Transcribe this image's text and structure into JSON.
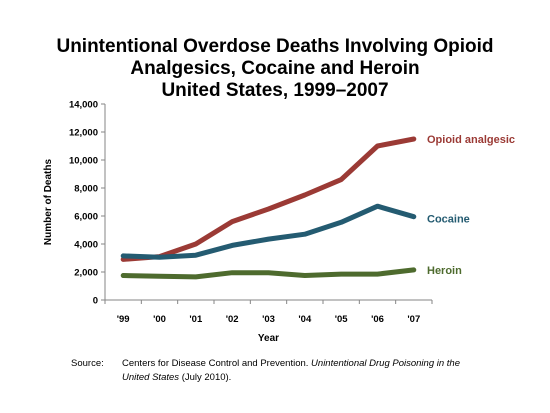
{
  "title": {
    "line1": "Unintentional Overdose Deaths Involving Opioid",
    "line2": "Analgesics, Cocaine and Heroin",
    "line3": "United States, 1999–2007"
  },
  "source": {
    "label": "Source:",
    "text_a": "Centers for Disease Control and Prevention.",
    "text_b": "Unintentional Drug Poisoning in the",
    "text_c": "United States",
    "text_d": "(July 2010)."
  },
  "chart_data": {
    "type": "line",
    "title": "Unintentional Overdose Deaths Involving Opioid Analgesics, Cocaine and Heroin United States, 1999–2007",
    "xlabel": "Year",
    "ylabel": "Number of Deaths",
    "x": [
      "'99",
      "'00",
      "'01",
      "'02",
      "'03",
      "'04",
      "'05",
      "'06",
      "'07"
    ],
    "ylim": [
      0,
      14000
    ],
    "yticks": [
      0,
      2000,
      4000,
      6000,
      8000,
      10000,
      12000,
      14000
    ],
    "ytick_labels": [
      "0",
      "2,000",
      "4,000",
      "6,000",
      "8,000",
      "10,000",
      "12,000",
      "14,000"
    ],
    "grid": false,
    "legend": "inline labels at line ends",
    "series": [
      {
        "name": "Opioid analgesic",
        "color": "#9b3a35",
        "values": [
          2900,
          3100,
          4000,
          5600,
          6500,
          7500,
          8600,
          11000,
          11500
        ]
      },
      {
        "name": "Cocaine",
        "color": "#245b71",
        "values": [
          3150,
          3050,
          3200,
          3900,
          4350,
          4700,
          5550,
          6700,
          5950
        ]
      },
      {
        "name": "Heroin",
        "color": "#4e6b2e",
        "values": [
          1750,
          1700,
          1650,
          1950,
          1950,
          1750,
          1850,
          1850,
          2150
        ]
      }
    ]
  }
}
